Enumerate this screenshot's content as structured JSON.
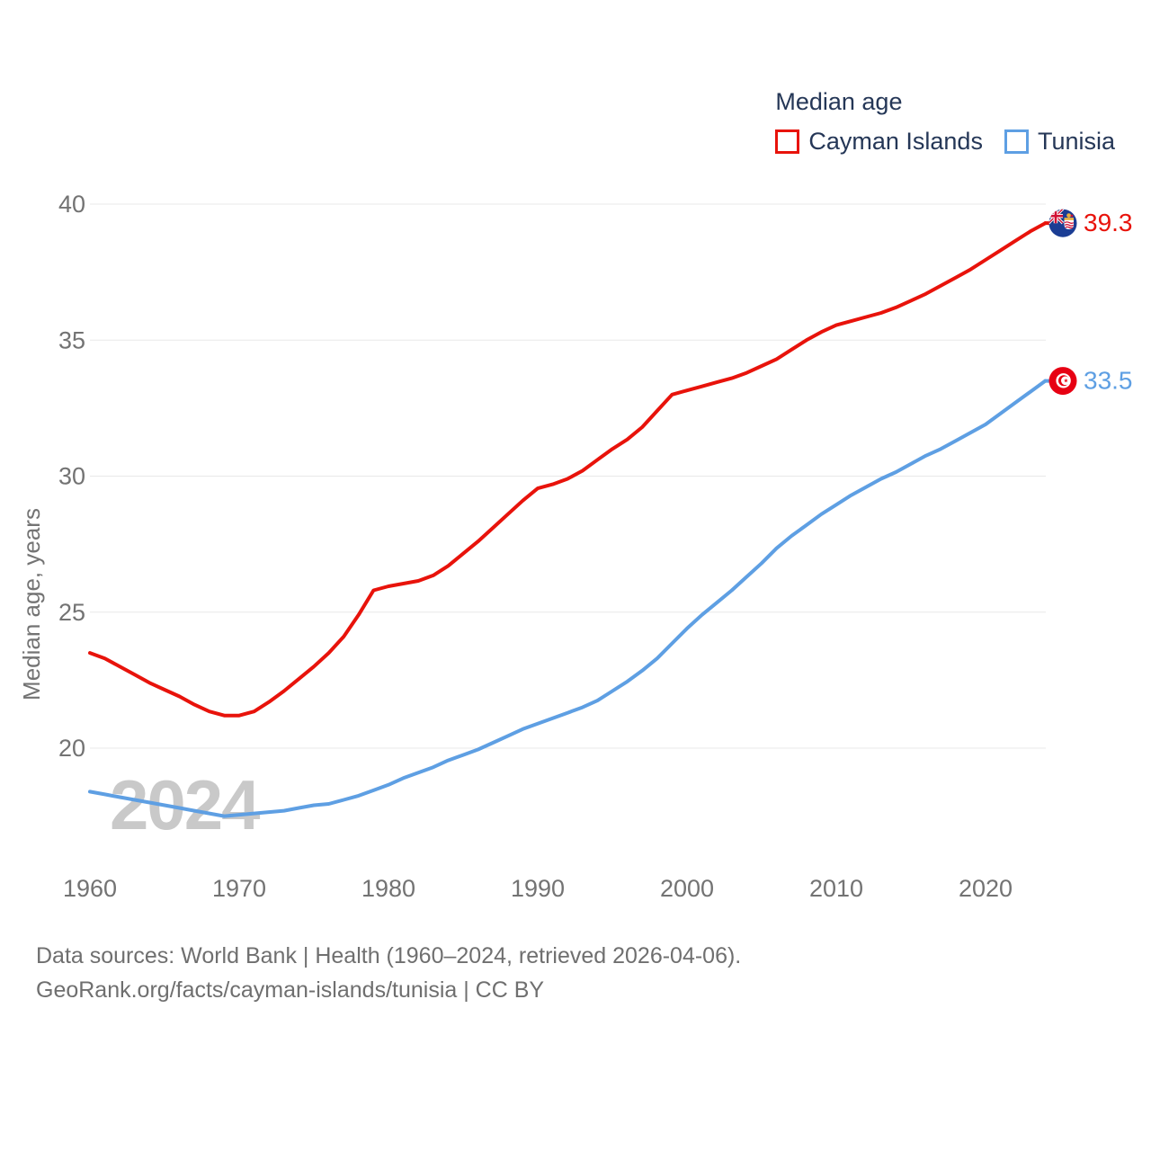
{
  "legend": {
    "title": "Median age",
    "items": [
      {
        "label": "Cayman Islands",
        "color": "#e8130b"
      },
      {
        "label": "Tunisia",
        "color": "#5e9fe3"
      }
    ]
  },
  "chart_data": {
    "type": "line",
    "title": "Median age",
    "xlabel": "",
    "ylabel": "Median age, years",
    "legend_position": "top-right",
    "grid": "horizontal-only",
    "x_ticks": [
      1960,
      1970,
      1980,
      1990,
      2000,
      2010,
      2020
    ],
    "y_ticks": [
      20,
      25,
      30,
      35,
      40
    ],
    "xlim": [
      1960,
      2024
    ],
    "ylim": [
      17,
      41
    ],
    "x": [
      1960,
      1961,
      1962,
      1963,
      1964,
      1965,
      1966,
      1967,
      1968,
      1969,
      1970,
      1971,
      1972,
      1973,
      1974,
      1975,
      1976,
      1977,
      1978,
      1979,
      1980,
      1981,
      1982,
      1983,
      1984,
      1985,
      1986,
      1987,
      1988,
      1989,
      1990,
      1991,
      1992,
      1993,
      1994,
      1995,
      1996,
      1997,
      1998,
      1999,
      2000,
      2001,
      2002,
      2003,
      2004,
      2005,
      2006,
      2007,
      2008,
      2009,
      2010,
      2011,
      2012,
      2013,
      2014,
      2015,
      2016,
      2017,
      2018,
      2019,
      2020,
      2021,
      2022,
      2023,
      2024
    ],
    "series": [
      {
        "name": "Cayman Islands",
        "color": "#e8130b",
        "flag": "cayman-islands",
        "values": [
          23.5,
          23.3,
          23.0,
          22.7,
          22.4,
          22.15,
          21.9,
          21.6,
          21.35,
          21.2,
          21.2,
          21.35,
          21.7,
          22.1,
          22.55,
          23.0,
          23.5,
          24.1,
          24.9,
          25.8,
          25.95,
          26.05,
          26.15,
          26.35,
          26.7,
          27.15,
          27.6,
          28.1,
          28.6,
          29.1,
          29.55,
          29.7,
          29.9,
          30.2,
          30.6,
          31.0,
          31.35,
          31.8,
          32.4,
          33.0,
          33.15,
          33.3,
          33.45,
          33.6,
          33.8,
          34.05,
          34.3,
          34.65,
          35.0,
          35.3,
          35.55,
          35.7,
          35.85,
          36.0,
          36.2,
          36.45,
          36.7,
          37.0,
          37.3,
          37.6,
          37.95,
          38.3,
          38.65,
          39.0,
          39.3
        ]
      },
      {
        "name": "Tunisia",
        "color": "#5e9fe3",
        "flag": "tunisia",
        "values": [
          18.4,
          18.3,
          18.2,
          18.1,
          18.0,
          17.9,
          17.8,
          17.7,
          17.6,
          17.5,
          17.55,
          17.6,
          17.65,
          17.7,
          17.8,
          17.9,
          17.95,
          18.1,
          18.25,
          18.45,
          18.65,
          18.9,
          19.1,
          19.3,
          19.55,
          19.75,
          19.95,
          20.2,
          20.45,
          20.7,
          20.9,
          21.1,
          21.3,
          21.5,
          21.75,
          22.1,
          22.45,
          22.85,
          23.3,
          23.85,
          24.4,
          24.9,
          25.35,
          25.8,
          26.3,
          26.8,
          27.35,
          27.8,
          28.2,
          28.6,
          28.95,
          29.3,
          29.6,
          29.9,
          30.15,
          30.45,
          30.75,
          31.0,
          31.3,
          31.6,
          31.9,
          32.3,
          32.7,
          33.1,
          33.5
        ]
      }
    ]
  },
  "annotations": {
    "watermark": "2024",
    "end_labels": [
      {
        "series": "Cayman Islands",
        "value": "39.3"
      },
      {
        "series": "Tunisia",
        "value": "33.5"
      }
    ]
  },
  "footer": {
    "line1": "Data sources: World Bank | Health (1960–2024, retrieved 2026-04-06).",
    "line2": "GeoRank.org/facts/cayman-islands/tunisia | CC BY"
  }
}
